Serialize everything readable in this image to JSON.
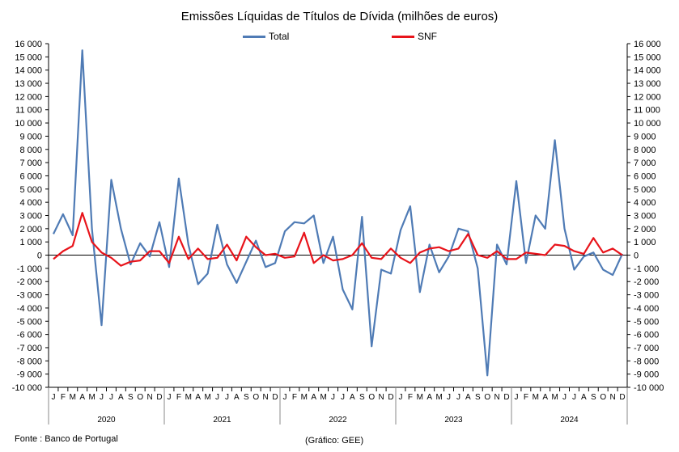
{
  "chart_data": {
    "type": "line",
    "title": "Emissões Líquidas de Títulos de Dívida (milhões de euros)",
    "month_labels": [
      "J",
      "F",
      "M",
      "A",
      "M",
      "J",
      "J",
      "A",
      "S",
      "O",
      "N",
      "D"
    ],
    "years": [
      "2020",
      "2021",
      "2022",
      "2023",
      "2024"
    ],
    "ylim": [
      -10000,
      16000
    ],
    "y_ticks": [
      -10000,
      -9000,
      -8000,
      -7000,
      -6000,
      -5000,
      -4000,
      -3000,
      -2000,
      -1000,
      0,
      1000,
      2000,
      3000,
      4000,
      5000,
      6000,
      7000,
      8000,
      9000,
      10000,
      11000,
      12000,
      13000,
      14000,
      15000,
      16000
    ],
    "y_tick_labels": [
      "-10 000",
      "-9 000",
      "-8 000",
      "-7 000",
      "-6 000",
      "-5 000",
      "-4 000",
      "-3 000",
      "-2 000",
      "-1 000",
      "0",
      "1 000",
      "2 000",
      "3 000",
      "4 000",
      "5 000",
      "6 000",
      "7 000",
      "8 000",
      "9 000",
      "10 000",
      "11 000",
      "12 000",
      "13 000",
      "14 000",
      "15 000",
      "16 000"
    ],
    "grid": false,
    "legend_position": "top-center",
    "series": [
      {
        "name": "Total",
        "color": "#4f7bb5",
        "values": [
          1600,
          3100,
          1500,
          15500,
          2000,
          -5300,
          5700,
          2000,
          -700,
          900,
          -100,
          2500,
          -900,
          5800,
          800,
          -2200,
          -1400,
          2300,
          -700,
          -2100,
          -500,
          1100,
          -900,
          -600,
          1800,
          2500,
          2400,
          3000,
          -600,
          1400,
          -2600,
          -4100,
          2900,
          -6900,
          -1100,
          -1400,
          1900,
          3700,
          -2800,
          800,
          -1300,
          -100,
          2000,
          1800,
          -1000,
          -9100,
          800,
          -700,
          5600,
          -600,
          3000,
          2000,
          8700,
          2000,
          -1100,
          -100,
          200,
          -1100,
          -1500,
          100
        ]
      },
      {
        "name": "SNF",
        "color": "#e8141b",
        "values": [
          -300,
          300,
          700,
          3200,
          1000,
          200,
          -200,
          -800,
          -500,
          -400,
          300,
          300,
          -600,
          1400,
          -300,
          500,
          -300,
          -200,
          800,
          -400,
          1400,
          600,
          0,
          100,
          -200,
          -100,
          1700,
          -600,
          0,
          -400,
          -300,
          0,
          900,
          -200,
          -300,
          500,
          -200,
          -600,
          200,
          500,
          600,
          300,
          500,
          1600,
          0,
          -200,
          300,
          -300,
          -300,
          200,
          100,
          0,
          800,
          700,
          300,
          100,
          1300,
          200,
          500,
          0
        ]
      }
    ]
  },
  "footer": {
    "source": "Fonte : Banco de Portugal",
    "credit": "(Gráfico: GEE)"
  }
}
